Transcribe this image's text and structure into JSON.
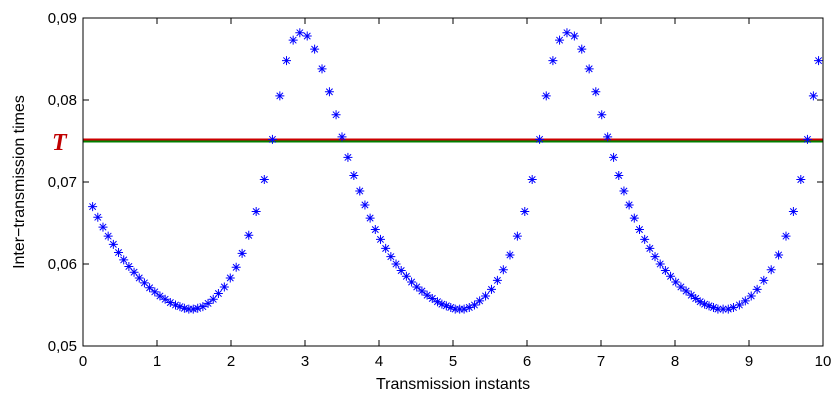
{
  "chart_data": {
    "type": "scatter",
    "xlabel": "Transmission instants",
    "ylabel": "Inter−transmission times",
    "xlim": [
      0,
      10
    ],
    "ylim": [
      0.05,
      0.09
    ],
    "x_ticks": [
      0,
      1,
      2,
      3,
      4,
      5,
      6,
      7,
      8,
      9,
      10
    ],
    "x_tick_labels": [
      "0",
      "1",
      "2",
      "3",
      "4",
      "5",
      "6",
      "7",
      "8",
      "9",
      "10"
    ],
    "y_ticks": [
      0.05,
      0.06,
      0.07,
      0.08,
      0.09
    ],
    "y_tick_labels": [
      "0,05",
      "0,06",
      "0,07",
      "0,08",
      "0,09"
    ],
    "grid": false,
    "marker": "*",
    "marker_color": "#0000ff",
    "threshold": {
      "label": "T",
      "value": 0.075,
      "label_color": "#c00000",
      "line_colors": [
        "#cc0000",
        "#008000"
      ]
    },
    "series": [
      {
        "x": [
          0.13,
          0.2,
          0.27,
          0.34,
          0.41,
          0.48,
          0.55,
          0.62,
          0.69,
          0.76,
          0.83,
          0.9,
          0.97,
          1.04,
          1.11,
          1.18,
          1.25,
          1.31,
          1.37,
          1.43,
          1.49,
          1.55,
          1.62,
          1.69,
          1.76,
          1.83,
          1.91,
          1.99,
          2.07,
          2.15,
          2.24,
          2.34,
          2.45,
          2.56,
          2.66,
          2.75,
          2.84,
          2.93,
          3.03,
          3.13,
          3.23,
          3.33,
          3.42,
          3.5,
          3.58,
          3.66,
          3.74,
          3.81,
          3.88,
          3.95,
          4.02,
          4.09,
          4.16,
          4.23,
          4.3,
          4.37,
          4.44,
          4.51,
          4.58,
          4.65,
          4.72,
          4.79,
          4.85,
          4.91,
          4.97,
          5.03,
          5.09,
          5.15,
          5.22,
          5.29,
          5.36,
          5.44,
          5.52,
          5.6,
          5.68,
          5.77,
          5.87,
          5.97,
          6.07,
          6.17,
          6.26,
          6.35,
          6.44,
          6.54,
          6.64,
          6.74,
          6.84,
          6.93,
          7.01,
          7.09,
          7.17,
          7.24,
          7.31,
          7.38,
          7.45,
          7.52,
          7.59,
          7.66,
          7.73,
          7.8,
          7.87,
          7.94,
          8.01,
          8.08,
          8.15,
          8.22,
          8.28,
          8.34,
          8.4,
          8.46,
          8.52,
          8.58,
          8.65,
          8.72,
          8.79,
          8.87,
          8.95,
          9.03,
          9.11,
          9.2,
          9.3,
          9.4,
          9.5,
          9.6,
          9.7,
          9.79,
          9.87,
          9.94
        ],
        "y": [
          0.067,
          0.0657,
          0.0645,
          0.0634,
          0.0624,
          0.0614,
          0.0605,
          0.0597,
          0.059,
          0.0583,
          0.0577,
          0.0571,
          0.0566,
          0.0561,
          0.0557,
          0.0553,
          0.055,
          0.0548,
          0.0546,
          0.0545,
          0.0545,
          0.0546,
          0.0548,
          0.0552,
          0.0557,
          0.0564,
          0.0572,
          0.0583,
          0.0596,
          0.0613,
          0.0635,
          0.0664,
          0.0703,
          0.0752,
          0.0805,
          0.0848,
          0.0873,
          0.0882,
          0.0878,
          0.0862,
          0.0838,
          0.081,
          0.0782,
          0.0755,
          0.073,
          0.0708,
          0.0689,
          0.0672,
          0.0656,
          0.0642,
          0.063,
          0.0619,
          0.0609,
          0.06,
          0.0592,
          0.0585,
          0.0578,
          0.0572,
          0.0567,
          0.0562,
          0.0558,
          0.0554,
          0.0551,
          0.0549,
          0.0547,
          0.0545,
          0.0545,
          0.0545,
          0.0547,
          0.055,
          0.0555,
          0.0561,
          0.0569,
          0.058,
          0.0593,
          0.0611,
          0.0634,
          0.0664,
          0.0703,
          0.0752,
          0.0805,
          0.0848,
          0.0873,
          0.0882,
          0.0878,
          0.0862,
          0.0838,
          0.081,
          0.0782,
          0.0755,
          0.073,
          0.0708,
          0.0689,
          0.0672,
          0.0656,
          0.0642,
          0.063,
          0.0619,
          0.0609,
          0.06,
          0.0592,
          0.0585,
          0.0578,
          0.0572,
          0.0567,
          0.0562,
          0.0558,
          0.0554,
          0.0551,
          0.0549,
          0.0547,
          0.0545,
          0.0545,
          0.0545,
          0.0547,
          0.055,
          0.0555,
          0.0561,
          0.0569,
          0.058,
          0.0593,
          0.0611,
          0.0634,
          0.0664,
          0.0703,
          0.0752,
          0.0805,
          0.0848
        ]
      }
    ]
  }
}
